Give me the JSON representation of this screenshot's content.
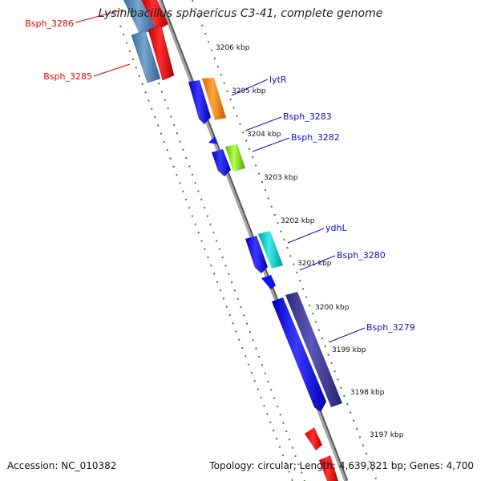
{
  "title": "Lysinibacillus sphaericus C3-41, complete genome",
  "footer": {
    "accession": "Accession: NC_010382",
    "topology": "Topology: circular; Length: 4,639,821 bp; Genes: 4,700"
  },
  "colors": {
    "backbone": "#8c8c8c",
    "tick": "#2a8a1f",
    "label_red": "#e00000",
    "label_blue": "#1010c8"
  },
  "kbp_labels": [
    "3206 kbp",
    "3205 kbp",
    "3204 kbp",
    "3203 kbp",
    "3202 kbp",
    "3201 kbp",
    "3200 kbp",
    "3199 kbp",
    "3198 kbp",
    "3197 kbp"
  ],
  "gene_labels": [
    {
      "text": "Bsph_3286",
      "color": "red"
    },
    {
      "text": "Bsph_3285",
      "color": "red"
    },
    {
      "text": "lytR",
      "color": "blue"
    },
    {
      "text": "Bsph_3283",
      "color": "blue"
    },
    {
      "text": "Bsph_3282",
      "color": "blue"
    },
    {
      "text": "ydhL",
      "color": "blue"
    },
    {
      "text": "Bsph_3280",
      "color": "blue"
    },
    {
      "text": "Bsph_3279",
      "color": "blue"
    }
  ]
}
